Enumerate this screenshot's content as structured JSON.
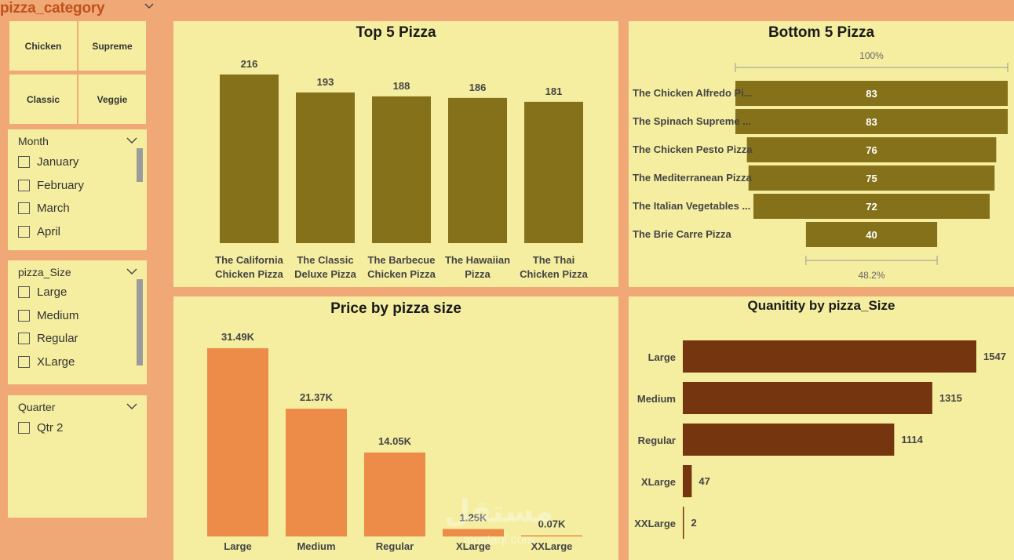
{
  "category": {
    "title": "pizza_category",
    "tiles": [
      "Chicken",
      "Supreme",
      "Classic",
      "Veggie"
    ]
  },
  "slicers": {
    "month": {
      "title": "Month",
      "options": [
        "January",
        "February",
        "March",
        "April"
      ]
    },
    "size": {
      "title": "pizza_Size",
      "options": [
        "Large",
        "Medium",
        "Regular",
        "XLarge"
      ]
    },
    "quarter": {
      "title": "Quarter",
      "options": [
        "Qtr 2"
      ]
    }
  },
  "colors": {
    "olive": "#85711a",
    "orange": "#ec8c48",
    "brown": "#74350f",
    "panel": "#f5eea0",
    "bg": "#f0a877"
  },
  "chart_data": [
    {
      "type": "bar",
      "title": "Top 5 Pizza",
      "categories": [
        [
          "The California",
          "Chicken Pizza"
        ],
        [
          "The Classic",
          "Deluxe Pizza"
        ],
        [
          "The Barbecue",
          "Chicken Pizza"
        ],
        [
          "The Hawaiian",
          "Pizza"
        ],
        [
          "The Thai",
          "Chicken Pizza"
        ]
      ],
      "values": [
        216,
        193,
        188,
        186,
        181
      ],
      "labels": [
        "216",
        "193",
        "188",
        "186",
        "181"
      ],
      "ylim": [
        0,
        216
      ]
    },
    {
      "type": "funnel",
      "title": "Bottom 5 Pizza",
      "categories": [
        "The Chicken Alfredo Pi...",
        "The Spinach Supreme ...",
        "The Chicken Pesto Pizza",
        "The Mediterranean Pizza",
        "The Italian Vegetables ...",
        "The Brie Carre Pizza"
      ],
      "values": [
        83,
        83,
        76,
        75,
        72,
        40
      ],
      "labels": [
        "83",
        "83",
        "76",
        "75",
        "72",
        "40"
      ],
      "top_pct": "100%",
      "bottom_pct": "48.2%"
    },
    {
      "type": "bar",
      "title": "Price by pizza size",
      "categories": [
        "Large",
        "Medium",
        "Regular",
        "XLarge",
        "XXLarge"
      ],
      "values": [
        31.49,
        21.37,
        14.05,
        1.25,
        0.07
      ],
      "labels": [
        "31.49K",
        "21.37K",
        "14.05K",
        "1.25K",
        "0.07K"
      ],
      "ylim": [
        0,
        31.49
      ]
    },
    {
      "type": "bar-horizontal",
      "title": "Quanitity by pizza_Size",
      "categories": [
        "Large",
        "Medium",
        "Regular",
        "XLarge",
        "XXLarge"
      ],
      "values": [
        1547,
        1315,
        1114,
        47,
        2
      ],
      "labels": [
        "1547",
        "1315",
        "1114",
        "47",
        "2"
      ],
      "xlim": [
        0,
        1547
      ]
    }
  ],
  "watermark": {
    "text": "مستقل",
    "sub": "mostaql.com"
  }
}
